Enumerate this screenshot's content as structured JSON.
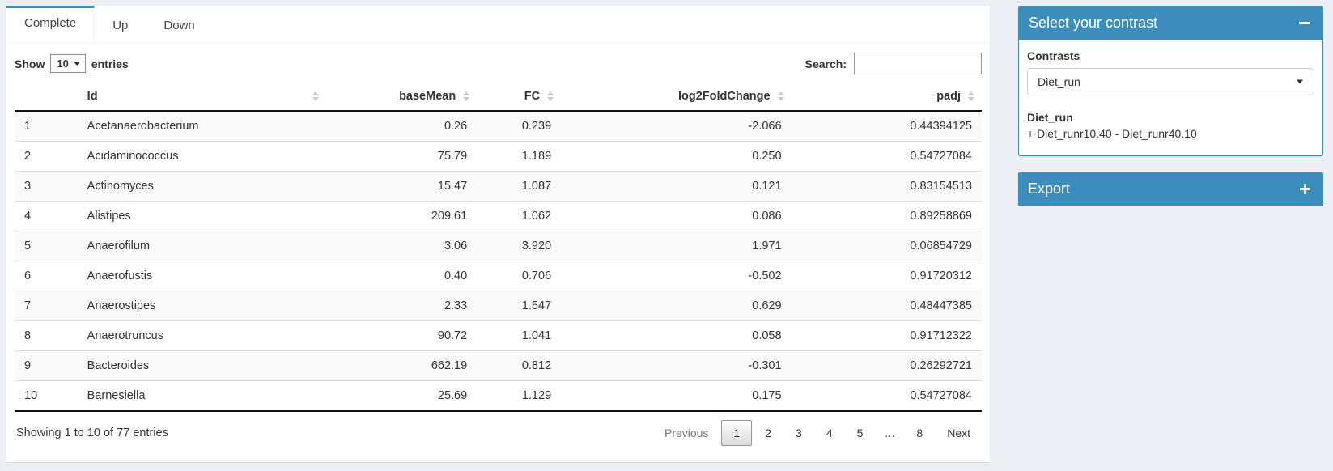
{
  "colors": {
    "primary": "#3c8dbc",
    "stripe": "#f9f9f9"
  },
  "tabs": [
    {
      "label": "Complete",
      "active": true
    },
    {
      "label": "Up",
      "active": false
    },
    {
      "label": "Down",
      "active": false
    }
  ],
  "controls": {
    "show_label": "Show",
    "page_length": "10",
    "entries_label": "entries",
    "search_label": "Search:",
    "search_value": ""
  },
  "table": {
    "columns": [
      "Id",
      "baseMean",
      "FC",
      "log2FoldChange",
      "padj"
    ],
    "rows": [
      {
        "num": "1",
        "cells": [
          "Acetanaerobacterium",
          "0.26",
          "0.239",
          "-2.066",
          "0.44394125"
        ]
      },
      {
        "num": "2",
        "cells": [
          "Acidaminococcus",
          "75.79",
          "1.189",
          "0.250",
          "0.54727084"
        ]
      },
      {
        "num": "3",
        "cells": [
          "Actinomyces",
          "15.47",
          "1.087",
          "0.121",
          "0.83154513"
        ]
      },
      {
        "num": "4",
        "cells": [
          "Alistipes",
          "209.61",
          "1.062",
          "0.086",
          "0.89258869"
        ]
      },
      {
        "num": "5",
        "cells": [
          "Anaerofilum",
          "3.06",
          "3.920",
          "1.971",
          "0.06854729"
        ]
      },
      {
        "num": "6",
        "cells": [
          "Anaerofustis",
          "0.40",
          "0.706",
          "-0.502",
          "0.91720312"
        ]
      },
      {
        "num": "7",
        "cells": [
          "Anaerostipes",
          "2.33",
          "1.547",
          "0.629",
          "0.48447385"
        ]
      },
      {
        "num": "8",
        "cells": [
          "Anaerotruncus",
          "90.72",
          "1.041",
          "0.058",
          "0.91712322"
        ]
      },
      {
        "num": "9",
        "cells": [
          "Bacteroides",
          "662.19",
          "0.812",
          "-0.301",
          "0.26292721"
        ]
      },
      {
        "num": "10",
        "cells": [
          "Barnesiella",
          "25.69",
          "1.129",
          "0.175",
          "0.54727084"
        ]
      }
    ]
  },
  "footer": {
    "info": "Showing 1 to 10 of 77 entries",
    "pagination": [
      {
        "label": "Previous",
        "type": "disabled"
      },
      {
        "label": "1",
        "type": "current"
      },
      {
        "label": "2",
        "type": "page"
      },
      {
        "label": "3",
        "type": "page"
      },
      {
        "label": "4",
        "type": "page"
      },
      {
        "label": "5",
        "type": "page"
      },
      {
        "label": "…",
        "type": "ellipsis"
      },
      {
        "label": "8",
        "type": "page"
      },
      {
        "label": "Next",
        "type": "page"
      }
    ]
  },
  "contrast_box": {
    "title": "Select your contrast",
    "contrasts_label": "Contrasts",
    "selected": "Diet_run",
    "detail_name": "Diet_run",
    "detail_formula": "+ Diet_runr10.40 - Diet_runr40.10"
  },
  "export_box": {
    "title": "Export"
  }
}
